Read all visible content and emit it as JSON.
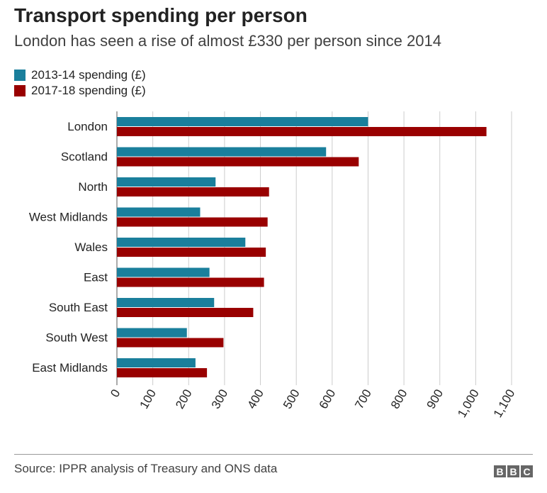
{
  "header": {
    "title": "Transport spending per person",
    "subtitle": "London has seen a rise of almost £330 per person since 2014"
  },
  "footer": {
    "source": "Source: IPPR analysis of Treasury and ONS data",
    "logo_letters": [
      "B",
      "B",
      "C"
    ]
  },
  "colors": {
    "series_2013": "#1a7f9c",
    "series_2017": "#990000",
    "grid": "#cccccc",
    "text": "#222222"
  },
  "chart_data": {
    "type": "bar",
    "orientation": "horizontal",
    "categories": [
      "London",
      "Scotland",
      "North",
      "West Midlands",
      "Wales",
      "East",
      "South East",
      "South West",
      "East Midlands"
    ],
    "series": [
      {
        "name": "2013-14 spending (£)",
        "values": [
          700,
          583,
          275,
          232,
          358,
          258,
          271,
          195,
          219
        ]
      },
      {
        "name": "2017-18 spending (£)",
        "values": [
          1030,
          674,
          424,
          420,
          415,
          410,
          380,
          297,
          251
        ]
      }
    ],
    "xlim": [
      0,
      1100
    ],
    "xticks": [
      0,
      100,
      200,
      300,
      400,
      500,
      600,
      700,
      800,
      900,
      1000,
      1100
    ],
    "xtick_labels": [
      "0",
      "100",
      "200",
      "300",
      "400",
      "500",
      "600",
      "700",
      "800",
      "900",
      "1,000",
      "1,100"
    ],
    "grid": true,
    "legend_position": "top-left"
  }
}
